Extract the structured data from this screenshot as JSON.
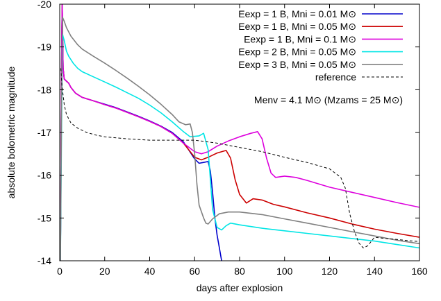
{
  "chart_data": {
    "type": "line",
    "xlabel": "days after explosion",
    "ylabel": "absolute bolometric magnitude",
    "xlim": [
      0,
      160
    ],
    "ylim": [
      -14,
      -20
    ],
    "y_inverted": true,
    "grid": false,
    "legend_position": "top-right",
    "x_ticks": [
      0,
      20,
      40,
      60,
      80,
      100,
      120,
      140,
      160
    ],
    "y_ticks": [
      -20,
      -19,
      -18,
      -17,
      -16,
      -15,
      -14
    ],
    "annotation": "Menv = 4.1 M⊙ (Mzams = 25 M⊙)",
    "series": [
      {
        "name": "Eexp = 1 B, Mni = 0.01 M⊙",
        "color": "#0000cc",
        "dash": "solid",
        "points": [
          [
            0.3,
            -14
          ],
          [
            0.6,
            -16.5
          ],
          [
            0.9,
            -19.2
          ],
          [
            1.1,
            -20
          ],
          [
            1.5,
            -18.5
          ],
          [
            2,
            -18.25
          ],
          [
            3,
            -18.2
          ],
          [
            4,
            -18.15
          ],
          [
            5,
            -18.05
          ],
          [
            7,
            -17.92
          ],
          [
            10,
            -17.82
          ],
          [
            15,
            -17.74
          ],
          [
            20,
            -17.66
          ],
          [
            25,
            -17.58
          ],
          [
            30,
            -17.48
          ],
          [
            35,
            -17.38
          ],
          [
            40,
            -17.27
          ],
          [
            45,
            -17.15
          ],
          [
            50,
            -17.0
          ],
          [
            55,
            -16.78
          ],
          [
            60,
            -16.38
          ],
          [
            62,
            -16.28
          ],
          [
            64,
            -16.3
          ],
          [
            66,
            -16.32
          ],
          [
            67,
            -16.1
          ],
          [
            68,
            -15.6
          ],
          [
            69,
            -15.0
          ],
          [
            70,
            -14.6
          ],
          [
            71,
            -14.3
          ],
          [
            72,
            -14.0
          ]
        ]
      },
      {
        "name": "Eexp = 1 B, Mni = 0.05 M⊙",
        "color": "#cc0000",
        "dash": "solid",
        "points": [
          [
            0.3,
            -14
          ],
          [
            0.6,
            -16.5
          ],
          [
            0.9,
            -19.2
          ],
          [
            1.1,
            -20
          ],
          [
            1.5,
            -18.5
          ],
          [
            2,
            -18.25
          ],
          [
            3,
            -18.2
          ],
          [
            4,
            -18.15
          ],
          [
            5,
            -18.05
          ],
          [
            7,
            -17.92
          ],
          [
            10,
            -17.82
          ],
          [
            15,
            -17.74
          ],
          [
            20,
            -17.65
          ],
          [
            25,
            -17.57
          ],
          [
            30,
            -17.47
          ],
          [
            35,
            -17.37
          ],
          [
            40,
            -17.26
          ],
          [
            45,
            -17.14
          ],
          [
            50,
            -16.98
          ],
          [
            55,
            -16.75
          ],
          [
            60,
            -16.42
          ],
          [
            63,
            -16.36
          ],
          [
            66,
            -16.42
          ],
          [
            70,
            -16.52
          ],
          [
            74,
            -16.58
          ],
          [
            76,
            -16.4
          ],
          [
            78,
            -15.9
          ],
          [
            80,
            -15.55
          ],
          [
            83,
            -15.35
          ],
          [
            86,
            -15.45
          ],
          [
            90,
            -15.42
          ],
          [
            95,
            -15.32
          ],
          [
            100,
            -15.26
          ],
          [
            110,
            -15.12
          ],
          [
            120,
            -15.0
          ],
          [
            130,
            -14.86
          ],
          [
            140,
            -14.74
          ],
          [
            150,
            -14.64
          ],
          [
            160,
            -14.55
          ]
        ]
      },
      {
        "name": "Eexp = 1 B, Mni = 0.1 M⊙",
        "color": "#dd00dd",
        "dash": "solid",
        "points": [
          [
            0.3,
            -14
          ],
          [
            0.6,
            -16.5
          ],
          [
            0.9,
            -19.2
          ],
          [
            1.1,
            -20
          ],
          [
            1.5,
            -18.5
          ],
          [
            2,
            -18.25
          ],
          [
            3,
            -18.2
          ],
          [
            4,
            -18.15
          ],
          [
            5,
            -18.05
          ],
          [
            7,
            -17.92
          ],
          [
            10,
            -17.82
          ],
          [
            15,
            -17.74
          ],
          [
            20,
            -17.65
          ],
          [
            25,
            -17.57
          ],
          [
            30,
            -17.47
          ],
          [
            35,
            -17.37
          ],
          [
            40,
            -17.26
          ],
          [
            45,
            -17.14
          ],
          [
            50,
            -16.98
          ],
          [
            55,
            -16.75
          ],
          [
            60,
            -16.55
          ],
          [
            63,
            -16.5
          ],
          [
            66,
            -16.55
          ],
          [
            70,
            -16.68
          ],
          [
            75,
            -16.8
          ],
          [
            80,
            -16.9
          ],
          [
            85,
            -16.98
          ],
          [
            88,
            -17.02
          ],
          [
            90,
            -16.85
          ],
          [
            92,
            -16.4
          ],
          [
            94,
            -16.05
          ],
          [
            96,
            -15.95
          ],
          [
            100,
            -15.98
          ],
          [
            105,
            -15.95
          ],
          [
            110,
            -15.88
          ],
          [
            120,
            -15.72
          ],
          [
            130,
            -15.6
          ],
          [
            140,
            -15.48
          ],
          [
            150,
            -15.36
          ],
          [
            160,
            -15.25
          ]
        ]
      },
      {
        "name": "Eexp = 2 B, Mni = 0.05 M⊙",
        "color": "#00e5e5",
        "dash": "solid",
        "points": [
          [
            0.3,
            -14
          ],
          [
            0.8,
            -17
          ],
          [
            1.2,
            -19.3
          ],
          [
            2,
            -19.15
          ],
          [
            3,
            -18.9
          ],
          [
            4,
            -18.78
          ],
          [
            6,
            -18.62
          ],
          [
            8,
            -18.5
          ],
          [
            10,
            -18.42
          ],
          [
            15,
            -18.3
          ],
          [
            20,
            -18.18
          ],
          [
            25,
            -18.06
          ],
          [
            30,
            -17.93
          ],
          [
            35,
            -17.8
          ],
          [
            40,
            -17.64
          ],
          [
            45,
            -17.46
          ],
          [
            50,
            -17.25
          ],
          [
            55,
            -17.02
          ],
          [
            58,
            -16.9
          ],
          [
            62,
            -16.92
          ],
          [
            64,
            -16.98
          ],
          [
            66,
            -16.6
          ],
          [
            67,
            -15.9
          ],
          [
            68,
            -15.2
          ],
          [
            70,
            -14.78
          ],
          [
            72,
            -14.72
          ],
          [
            74,
            -14.82
          ],
          [
            76,
            -14.88
          ],
          [
            80,
            -14.84
          ],
          [
            90,
            -14.76
          ],
          [
            100,
            -14.7
          ],
          [
            110,
            -14.64
          ],
          [
            120,
            -14.58
          ],
          [
            130,
            -14.52
          ],
          [
            140,
            -14.46
          ],
          [
            150,
            -14.38
          ],
          [
            160,
            -14.3
          ]
        ]
      },
      {
        "name": "Eexp = 3 B, Mni = 0.05 M⊙",
        "color": "#808080",
        "dash": "solid",
        "points": [
          [
            0.3,
            -14
          ],
          [
            0.8,
            -17.5
          ],
          [
            1.2,
            -19.7
          ],
          [
            2,
            -19.6
          ],
          [
            3,
            -19.45
          ],
          [
            5,
            -19.25
          ],
          [
            8,
            -19.05
          ],
          [
            10,
            -18.95
          ],
          [
            15,
            -18.78
          ],
          [
            20,
            -18.62
          ],
          [
            25,
            -18.45
          ],
          [
            30,
            -18.27
          ],
          [
            35,
            -18.08
          ],
          [
            40,
            -17.88
          ],
          [
            45,
            -17.66
          ],
          [
            50,
            -17.42
          ],
          [
            53,
            -17.25
          ],
          [
            56,
            -17.18
          ],
          [
            58,
            -17.2
          ],
          [
            59,
            -17.0
          ],
          [
            60,
            -16.5
          ],
          [
            61,
            -15.8
          ],
          [
            62,
            -15.3
          ],
          [
            64,
            -15.0
          ],
          [
            65,
            -14.88
          ],
          [
            66,
            -14.86
          ],
          [
            68,
            -14.98
          ],
          [
            71,
            -15.1
          ],
          [
            75,
            -15.14
          ],
          [
            80,
            -15.14
          ],
          [
            90,
            -15.08
          ],
          [
            100,
            -14.98
          ],
          [
            110,
            -14.88
          ],
          [
            120,
            -14.78
          ],
          [
            130,
            -14.68
          ],
          [
            140,
            -14.58
          ],
          [
            150,
            -14.48
          ],
          [
            160,
            -14.4
          ]
        ]
      },
      {
        "name": "reference",
        "color": "#000000",
        "dash": "dashed",
        "points": [
          [
            0.5,
            -18.5
          ],
          [
            1,
            -18.1
          ],
          [
            2,
            -17.65
          ],
          [
            3,
            -17.42
          ],
          [
            5,
            -17.22
          ],
          [
            8,
            -17.1
          ],
          [
            12,
            -17.0
          ],
          [
            16,
            -16.94
          ],
          [
            20,
            -16.9
          ],
          [
            30,
            -16.85
          ],
          [
            40,
            -16.82
          ],
          [
            50,
            -16.82
          ],
          [
            60,
            -16.82
          ],
          [
            70,
            -16.75
          ],
          [
            80,
            -16.65
          ],
          [
            90,
            -16.55
          ],
          [
            100,
            -16.42
          ],
          [
            110,
            -16.3
          ],
          [
            120,
            -16.15
          ],
          [
            125,
            -15.95
          ],
          [
            127,
            -15.7
          ],
          [
            128,
            -15.4
          ],
          [
            129,
            -15.1
          ],
          [
            131,
            -14.7
          ],
          [
            133,
            -14.42
          ],
          [
            135,
            -14.3
          ],
          [
            137,
            -14.35
          ],
          [
            140,
            -14.55
          ],
          [
            145,
            -14.52
          ],
          [
            150,
            -14.5
          ],
          [
            155,
            -14.47
          ],
          [
            160,
            -14.45
          ]
        ]
      }
    ]
  }
}
